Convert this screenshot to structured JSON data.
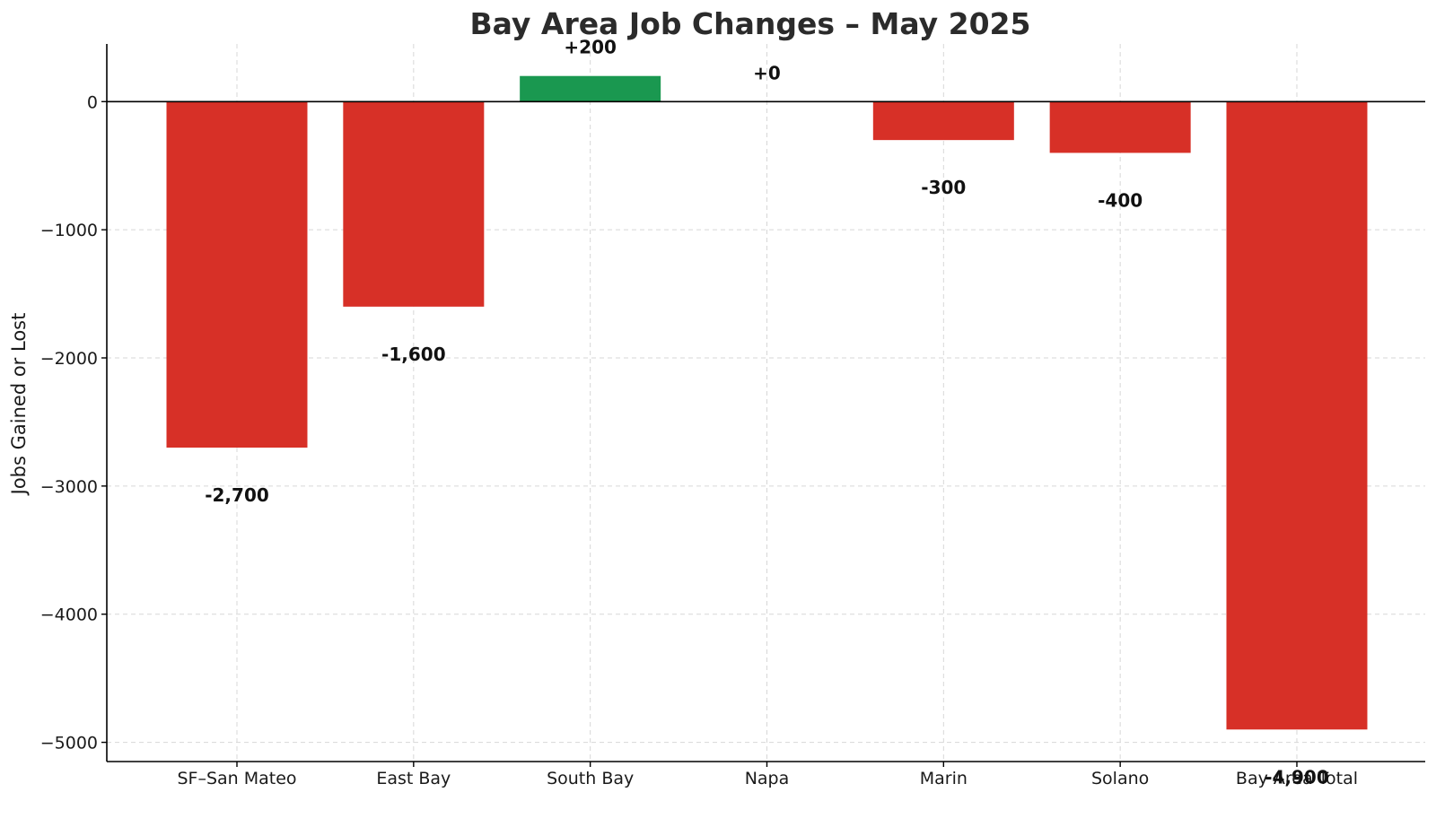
{
  "chart_data": {
    "type": "bar",
    "title": "Bay Area Job Changes – May 2025",
    "xlabel": "",
    "ylabel": "Jobs Gained or Lost",
    "categories": [
      "SF–San Mateo",
      "East Bay",
      "South Bay",
      "Napa",
      "Marin",
      "Solano",
      "Bay Area Total"
    ],
    "values": [
      -2700,
      -1600,
      200,
      0,
      -300,
      -400,
      -4900
    ],
    "data_labels": [
      "-2,700",
      "-1,600",
      "+200",
      "+0",
      "-300",
      "-400",
      "-4,900"
    ],
    "ylim": [
      -5150,
      450
    ],
    "yticks": [
      0,
      -1000,
      -2000,
      -3000,
      -4000,
      -5000
    ],
    "ytick_labels": [
      "0",
      "−1000",
      "−2000",
      "−3000",
      "−4000",
      "−5000"
    ],
    "grid": true,
    "zero_line": true,
    "colors": {
      "positive": "#1a9850",
      "negative": "#d73027"
    }
  }
}
